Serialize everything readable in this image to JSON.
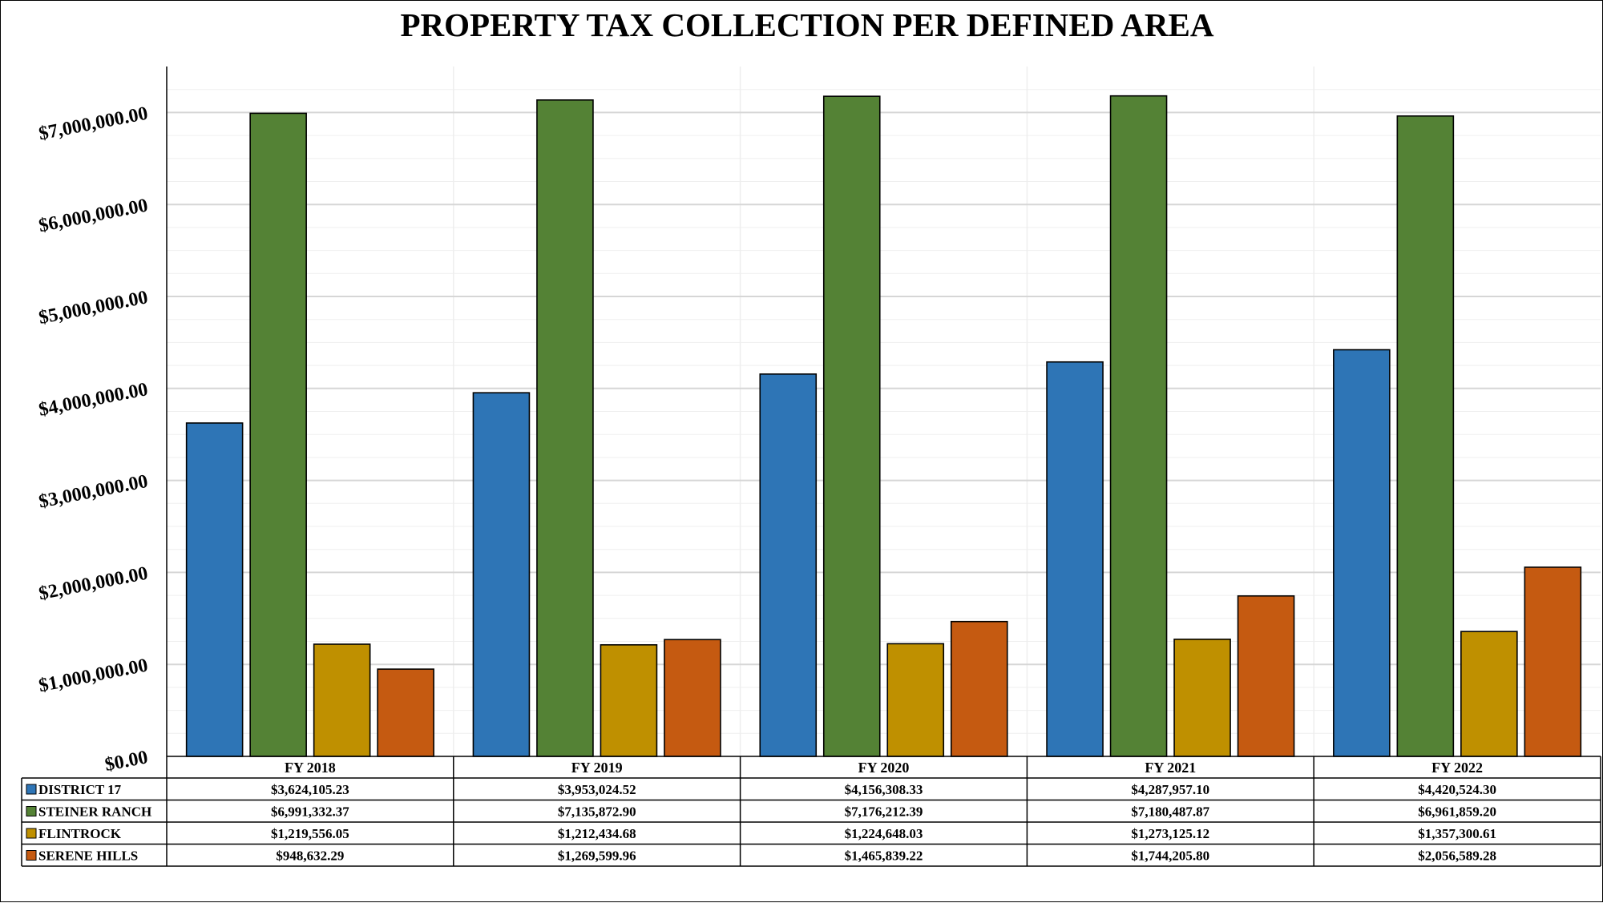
{
  "chart_data": {
    "type": "bar",
    "title": "PROPERTY TAX COLLECTION PER DEFINED AREA",
    "xlabel": "",
    "ylabel": "",
    "ylim": [
      0,
      7500000
    ],
    "y_ticks": [
      0,
      1000000,
      2000000,
      3000000,
      4000000,
      5000000,
      6000000,
      7000000
    ],
    "y_tick_labels": [
      "$0.00",
      "$1,000,000.00",
      "$2,000,000.00",
      "$3,000,000.00",
      "$4,000,000.00",
      "$5,000,000.00",
      "$6,000,000.00",
      "$7,000,000.00"
    ],
    "grid": true,
    "legend_placement": "bottom-left data table",
    "categories": [
      "FY 2018",
      "FY 2019",
      "FY 2020",
      "FY 2021",
      "FY 2022"
    ],
    "series": [
      {
        "name": "DISTRICT 17",
        "color": "#2e75b6",
        "values": [
          3624105.23,
          3953024.52,
          4156308.33,
          4287957.1,
          4420524.3
        ],
        "labels": [
          "$3,624,105.23",
          "$3,953,024.52",
          "$4,156,308.33",
          "$4,287,957.10",
          "$4,420,524.30"
        ]
      },
      {
        "name": "STEINER RANCH",
        "color": "#548235",
        "values": [
          6991332.37,
          7135872.9,
          7176212.39,
          7180487.87,
          6961859.2
        ],
        "labels": [
          "$6,991,332.37",
          "$7,135,872.90",
          "$7,176,212.39",
          "$7,180,487.87",
          "$6,961,859.20"
        ]
      },
      {
        "name": "FLINTROCK",
        "color": "#bf9000",
        "values": [
          1219556.05,
          1212434.68,
          1224648.03,
          1273125.12,
          1357300.61
        ],
        "labels": [
          "$1,219,556.05",
          "$1,212,434.68",
          "$1,224,648.03",
          "$1,273,125.12",
          "$1,357,300.61"
        ]
      },
      {
        "name": "SERENE HILLS",
        "color": "#c55a11",
        "values": [
          948632.29,
          1269599.96,
          1465839.22,
          1744205.8,
          2056589.28
        ],
        "labels": [
          "$948,632.29",
          "$1,269,599.96",
          "$1,465,839.22",
          "$1,744,205.80",
          "$2,056,589.28"
        ]
      }
    ]
  }
}
